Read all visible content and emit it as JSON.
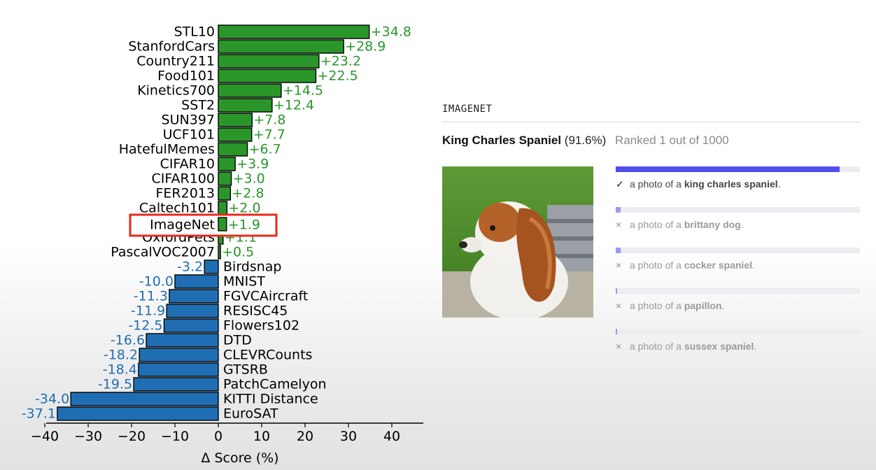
{
  "chart_data": {
    "type": "bar",
    "orientation": "horizontal",
    "xlabel": "Δ Score (%)",
    "xlim": [
      -40,
      47
    ],
    "xticks": [
      -40,
      -30,
      -20,
      -10,
      0,
      10,
      20,
      30,
      40
    ],
    "highlight": "ImageNet",
    "colors": {
      "positive": "#2a962a",
      "negative": "#1f6eb4",
      "highlight_box": "#e8291c"
    },
    "categories": [
      "STL10",
      "StanfordCars",
      "Country211",
      "Food101",
      "Kinetics700",
      "SST2",
      "SUN397",
      "UCF101",
      "HatefulMemes",
      "CIFAR10",
      "CIFAR100",
      "FER2013",
      "Caltech101",
      "ImageNet",
      "OxfordPets",
      "PascalVOC2007",
      "Birdsnap",
      "MNIST",
      "FGVCAircraft",
      "RESISC45",
      "Flowers102",
      "DTD",
      "CLEVRCounts",
      "GTSRB",
      "PatchCamelyon",
      "KITTI Distance",
      "EuroSAT"
    ],
    "values": [
      34.8,
      28.9,
      23.2,
      22.5,
      14.5,
      12.4,
      7.8,
      7.7,
      6.7,
      3.9,
      3.0,
      2.8,
      2.0,
      1.9,
      1.1,
      0.5,
      -3.2,
      -10.0,
      -11.3,
      -11.9,
      -12.5,
      -16.6,
      -18.2,
      -18.4,
      -19.5,
      -34.0,
      -37.1
    ],
    "value_labels": [
      "+34.8",
      "+28.9",
      "+23.2",
      "+22.5",
      "+14.5",
      "+12.4",
      "+7.8",
      "+7.7",
      "+6.7",
      "+3.9",
      "+3.0",
      "+2.8",
      "+2.0",
      "+1.9",
      "+1.1",
      "+0.5",
      "-3.2",
      "-10.0",
      "-11.3",
      "-11.9",
      "-12.5",
      "-16.6",
      "-18.2",
      "-18.4",
      "-19.5",
      "-34.0",
      "-37.1"
    ]
  },
  "panel": {
    "section_title": "IMAGENET",
    "top_label": "King Charles Spaniel",
    "top_confidence": "(91.6%)",
    "rank_text": "Ranked 1 out of 1000",
    "photo_icon": "king-charles-spaniel-photo",
    "predictions": [
      {
        "mark": "✓",
        "prefix": "a photo of a ",
        "label": "king charles spaniel",
        "suffix": ".",
        "score": 0.916
      },
      {
        "mark": "×",
        "prefix": "a photo of a ",
        "label": "brittany dog",
        "suffix": ".",
        "score": 0.02
      },
      {
        "mark": "×",
        "prefix": "a photo of a ",
        "label": "cocker spaniel",
        "suffix": ".",
        "score": 0.02
      },
      {
        "mark": "×",
        "prefix": "a photo of a ",
        "label": "papillon",
        "suffix": ".",
        "score": 0.005
      },
      {
        "mark": "×",
        "prefix": "a photo of a ",
        "label": "sussex spaniel",
        "suffix": ".",
        "score": 0.005
      }
    ],
    "colors": {
      "bar": "#4f4ff0",
      "bar_dim": "#9a9af2",
      "bar_track": "#ececf1"
    }
  }
}
